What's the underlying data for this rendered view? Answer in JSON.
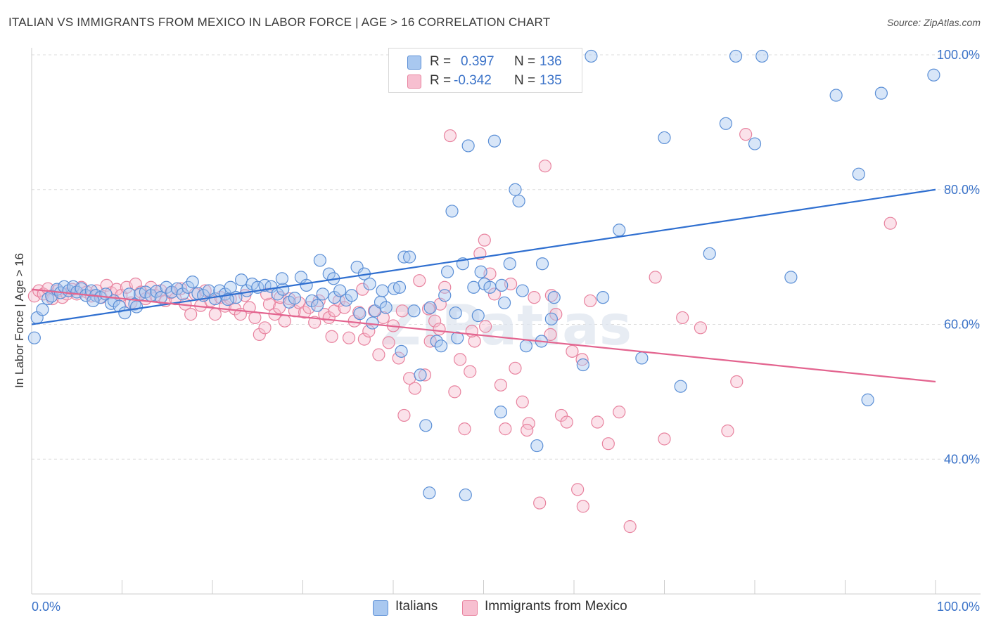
{
  "header": {
    "title": "ITALIAN VS IMMIGRANTS FROM MEXICO IN LABOR FORCE | AGE > 16 CORRELATION CHART",
    "source": "Source: ZipAtlas.com"
  },
  "stats_legend": {
    "rows": [
      {
        "r_label": "R =",
        "r_value": "0.397",
        "n_label": "N =",
        "n_value": "136"
      },
      {
        "r_label": "R =",
        "r_value": "-0.342",
        "n_label": "N =",
        "n_value": "135"
      }
    ]
  },
  "bottom_legend": {
    "items": [
      {
        "label": "Italians"
      },
      {
        "label": "Immigrants from Mexico"
      }
    ]
  },
  "colors": {
    "blue_fill": "#a9c8f0",
    "blue_stroke": "#5b8fd6",
    "blue_line": "#2f6fd0",
    "pink_fill": "#f7bfd0",
    "pink_stroke": "#e8839f",
    "pink_line": "#e3648f",
    "value_text": "#3a72c8",
    "grid": "#dddddd",
    "axis_text": "#3a72c8"
  },
  "chart_data": {
    "type": "scatter",
    "ylabel": "In Labor Force | Age > 16",
    "xlabel": "",
    "x_range": [
      0,
      100
    ],
    "y_range": [
      20,
      100
    ],
    "x_tick_labels": [
      "0.0%",
      "100.0%"
    ],
    "y_ticks": [
      40,
      60,
      80,
      100
    ],
    "y_tick_labels": [
      "40.0%",
      "60.0%",
      "80.0%",
      "100.0%"
    ],
    "grid": true,
    "watermark": "ZIPatlas",
    "series": [
      {
        "name": "Italians",
        "color": "#5b8fd6",
        "trend": {
          "x": [
            0,
            100
          ],
          "y": [
            60.0,
            80.0
          ]
        },
        "points": [
          [
            0.3,
            58.0
          ],
          [
            0.6,
            61.0
          ],
          [
            1.2,
            62.2
          ],
          [
            1.8,
            63.8
          ],
          [
            2.2,
            64.2
          ],
          [
            2.8,
            65.2
          ],
          [
            3.2,
            64.7
          ],
          [
            3.6,
            65.6
          ],
          [
            4.1,
            65.0
          ],
          [
            4.6,
            65.6
          ],
          [
            5.0,
            64.8
          ],
          [
            5.5,
            65.3
          ],
          [
            6.0,
            64.3
          ],
          [
            6.6,
            65.0
          ],
          [
            7.1,
            64.3
          ],
          [
            7.6,
            64.0
          ],
          [
            8.2,
            64.5
          ],
          [
            8.8,
            63.1
          ],
          [
            9.1,
            63.5
          ],
          [
            9.7,
            62.7
          ],
          [
            10.3,
            61.7
          ],
          [
            10.8,
            64.5
          ],
          [
            11.4,
            63.0
          ],
          [
            12.0,
            64.5
          ],
          [
            12.6,
            64.8
          ],
          [
            13.2,
            64.3
          ],
          [
            13.8,
            64.9
          ],
          [
            14.3,
            64.0
          ],
          [
            14.9,
            65.5
          ],
          [
            15.5,
            64.8
          ],
          [
            16.1,
            65.3
          ],
          [
            16.7,
            64.5
          ],
          [
            17.3,
            65.5
          ],
          [
            17.8,
            66.3
          ],
          [
            18.4,
            64.6
          ],
          [
            19.0,
            64.3
          ],
          [
            19.6,
            65.0
          ],
          [
            20.3,
            63.8
          ],
          [
            20.8,
            65.0
          ],
          [
            21.4,
            64.5
          ],
          [
            22.0,
            65.5
          ],
          [
            22.6,
            64.0
          ],
          [
            23.2,
            66.6
          ],
          [
            23.8,
            65.0
          ],
          [
            24.4,
            66.0
          ],
          [
            25.0,
            65.5
          ],
          [
            25.8,
            65.8
          ],
          [
            26.5,
            65.6
          ],
          [
            27.2,
            64.5
          ],
          [
            27.8,
            65.2
          ],
          [
            28.5,
            63.3
          ],
          [
            29.1,
            63.9
          ],
          [
            29.8,
            67.0
          ],
          [
            30.4,
            65.8
          ],
          [
            31.0,
            63.5
          ],
          [
            31.6,
            62.8
          ],
          [
            32.2,
            64.5
          ],
          [
            32.9,
            67.5
          ],
          [
            33.5,
            64.0
          ],
          [
            34.1,
            65.0
          ],
          [
            34.8,
            63.6
          ],
          [
            35.4,
            64.3
          ],
          [
            36.0,
            68.5
          ],
          [
            36.8,
            67.5
          ],
          [
            37.4,
            66.0
          ],
          [
            38.0,
            62.0
          ],
          [
            38.6,
            63.3
          ],
          [
            39.2,
            62.5
          ],
          [
            40.1,
            65.3
          ],
          [
            40.7,
            65.5
          ],
          [
            41.2,
            70.0
          ],
          [
            41.8,
            70.0
          ],
          [
            42.3,
            62.0
          ],
          [
            43.0,
            52.5
          ],
          [
            43.6,
            45.0
          ],
          [
            44.1,
            62.5
          ],
          [
            44.8,
            57.5
          ],
          [
            45.3,
            56.8
          ],
          [
            46.0,
            67.8
          ],
          [
            46.5,
            76.8
          ],
          [
            47.1,
            58.0
          ],
          [
            47.7,
            69.0
          ],
          [
            48.3,
            86.5
          ],
          [
            48.9,
            65.5
          ],
          [
            49.4,
            61.3
          ],
          [
            50.1,
            66.0
          ],
          [
            50.7,
            65.5
          ],
          [
            51.2,
            87.2
          ],
          [
            51.9,
            47.0
          ],
          [
            52.3,
            63.2
          ],
          [
            52.9,
            69.0
          ],
          [
            53.5,
            80.0
          ],
          [
            53.9,
            78.3
          ],
          [
            54.7,
            56.8
          ],
          [
            55.3,
            99.8
          ],
          [
            55.9,
            42.0
          ],
          [
            56.5,
            69.0
          ],
          [
            57.5,
            60.8
          ],
          [
            58.1,
            99.8
          ],
          [
            61.0,
            54.0
          ],
          [
            61.9,
            99.8
          ],
          [
            63.2,
            64.0
          ],
          [
            65.0,
            74.0
          ],
          [
            67.5,
            55.0
          ],
          [
            70.0,
            87.7
          ],
          [
            71.8,
            50.8
          ],
          [
            75.0,
            70.5
          ],
          [
            76.8,
            89.8
          ],
          [
            77.9,
            99.8
          ],
          [
            80.0,
            86.8
          ],
          [
            80.8,
            99.8
          ],
          [
            84.0,
            67.0
          ],
          [
            89.0,
            94.0
          ],
          [
            91.5,
            82.3
          ],
          [
            92.5,
            48.8
          ],
          [
            94.0,
            94.3
          ],
          [
            99.8,
            97.0
          ],
          [
            44.0,
            35.0
          ],
          [
            48.0,
            34.7
          ],
          [
            37.7,
            60.2
          ],
          [
            40.9,
            56.0
          ],
          [
            45.7,
            64.3
          ],
          [
            46.9,
            61.7
          ],
          [
            54.3,
            65.0
          ],
          [
            56.4,
            57.5
          ],
          [
            57.8,
            64.0
          ],
          [
            31.9,
            69.5
          ],
          [
            33.4,
            66.8
          ],
          [
            27.7,
            66.8
          ],
          [
            11.6,
            62.6
          ],
          [
            6.8,
            63.5
          ],
          [
            21.7,
            63.7
          ],
          [
            38.8,
            65.0
          ],
          [
            49.7,
            67.8
          ],
          [
            36.3,
            61.6
          ],
          [
            52.0,
            65.8
          ]
        ]
      },
      {
        "name": "Immigrants from Mexico",
        "color": "#e8839f",
        "trend": {
          "x": [
            0,
            100
          ],
          "y": [
            65.2,
            51.5
          ]
        },
        "points": [
          [
            0.3,
            64.2
          ],
          [
            0.8,
            65.0
          ],
          [
            1.3,
            64.5
          ],
          [
            1.8,
            65.3
          ],
          [
            2.3,
            63.8
          ],
          [
            2.9,
            65.0
          ],
          [
            3.4,
            64.0
          ],
          [
            3.9,
            64.5
          ],
          [
            4.5,
            65.2
          ],
          [
            5.0,
            64.5
          ],
          [
            5.5,
            65.5
          ],
          [
            6.1,
            64.8
          ],
          [
            6.6,
            64.2
          ],
          [
            7.2,
            65.0
          ],
          [
            7.7,
            64.0
          ],
          [
            8.3,
            65.8
          ],
          [
            8.8,
            64.7
          ],
          [
            9.4,
            65.2
          ],
          [
            9.9,
            64.3
          ],
          [
            10.5,
            65.5
          ],
          [
            11.0,
            63.2
          ],
          [
            11.5,
            66.0
          ],
          [
            12.1,
            64.8
          ],
          [
            12.6,
            63.8
          ],
          [
            13.2,
            65.5
          ],
          [
            13.7,
            64.3
          ],
          [
            14.3,
            65.0
          ],
          [
            14.8,
            63.5
          ],
          [
            15.4,
            64.7
          ],
          [
            15.9,
            63.8
          ],
          [
            16.5,
            65.3
          ],
          [
            17.0,
            63.0
          ],
          [
            17.6,
            61.5
          ],
          [
            18.1,
            64.5
          ],
          [
            18.7,
            62.8
          ],
          [
            19.2,
            65.0
          ],
          [
            19.8,
            63.5
          ],
          [
            20.3,
            61.5
          ],
          [
            20.9,
            64.0
          ],
          [
            21.4,
            62.7
          ],
          [
            22.0,
            63.8
          ],
          [
            22.5,
            62.3
          ],
          [
            23.1,
            61.5
          ],
          [
            23.6,
            64.3
          ],
          [
            24.1,
            62.5
          ],
          [
            24.7,
            61.0
          ],
          [
            25.2,
            58.5
          ],
          [
            25.8,
            59.5
          ],
          [
            26.3,
            63.0
          ],
          [
            26.9,
            61.5
          ],
          [
            27.4,
            62.5
          ],
          [
            28.0,
            60.5
          ],
          [
            28.5,
            63.8
          ],
          [
            29.1,
            62.0
          ],
          [
            29.6,
            63.2
          ],
          [
            30.2,
            61.8
          ],
          [
            30.7,
            62.5
          ],
          [
            31.3,
            60.3
          ],
          [
            31.8,
            63.5
          ],
          [
            32.4,
            61.5
          ],
          [
            32.9,
            61.0
          ],
          [
            33.5,
            62.0
          ],
          [
            34.0,
            63.5
          ],
          [
            34.6,
            62.5
          ],
          [
            35.1,
            58.0
          ],
          [
            35.7,
            60.5
          ],
          [
            36.2,
            61.8
          ],
          [
            36.8,
            57.8
          ],
          [
            37.3,
            59.0
          ],
          [
            37.9,
            62.0
          ],
          [
            38.4,
            55.5
          ],
          [
            38.9,
            61.0
          ],
          [
            39.5,
            57.3
          ],
          [
            40.0,
            59.8
          ],
          [
            40.6,
            55.0
          ],
          [
            41.2,
            46.5
          ],
          [
            41.8,
            52.0
          ],
          [
            42.4,
            50.5
          ],
          [
            42.9,
            66.5
          ],
          [
            43.5,
            52.5
          ],
          [
            44.1,
            57.5
          ],
          [
            44.6,
            60.5
          ],
          [
            45.2,
            63.0
          ],
          [
            45.7,
            65.5
          ],
          [
            46.3,
            88.0
          ],
          [
            46.8,
            50.0
          ],
          [
            47.4,
            54.8
          ],
          [
            47.9,
            44.5
          ],
          [
            48.5,
            53.0
          ],
          [
            49.0,
            57.5
          ],
          [
            49.6,
            70.5
          ],
          [
            50.1,
            72.5
          ],
          [
            50.7,
            67.5
          ],
          [
            51.2,
            64.5
          ],
          [
            51.9,
            51.0
          ],
          [
            52.4,
            44.5
          ],
          [
            53.0,
            66.0
          ],
          [
            53.5,
            53.5
          ],
          [
            54.3,
            48.5
          ],
          [
            55.0,
            45.3
          ],
          [
            55.6,
            64.0
          ],
          [
            56.2,
            33.5
          ],
          [
            56.8,
            83.5
          ],
          [
            57.4,
            58.5
          ],
          [
            58.0,
            61.5
          ],
          [
            58.6,
            46.5
          ],
          [
            59.2,
            45.5
          ],
          [
            59.8,
            56.0
          ],
          [
            60.4,
            35.5
          ],
          [
            61.0,
            33.0
          ],
          [
            61.8,
            63.5
          ],
          [
            62.6,
            45.5
          ],
          [
            63.8,
            42.3
          ],
          [
            65.0,
            47.0
          ],
          [
            66.2,
            30.0
          ],
          [
            69.0,
            67.0
          ],
          [
            70.0,
            43.0
          ],
          [
            72.0,
            61.0
          ],
          [
            74.0,
            59.5
          ],
          [
            77.0,
            44.2
          ],
          [
            78.0,
            51.5
          ],
          [
            79.0,
            88.2
          ],
          [
            95.0,
            75.0
          ],
          [
            41.0,
            62.0
          ],
          [
            43.9,
            62.3
          ],
          [
            45.1,
            59.3
          ],
          [
            48.7,
            59.0
          ],
          [
            50.2,
            59.7
          ],
          [
            54.8,
            44.3
          ],
          [
            57.5,
            64.3
          ],
          [
            60.9,
            54.8
          ],
          [
            27.5,
            64.0
          ],
          [
            33.2,
            58.2
          ],
          [
            36.6,
            65.2
          ],
          [
            26.0,
            64.5
          ]
        ]
      }
    ]
  }
}
